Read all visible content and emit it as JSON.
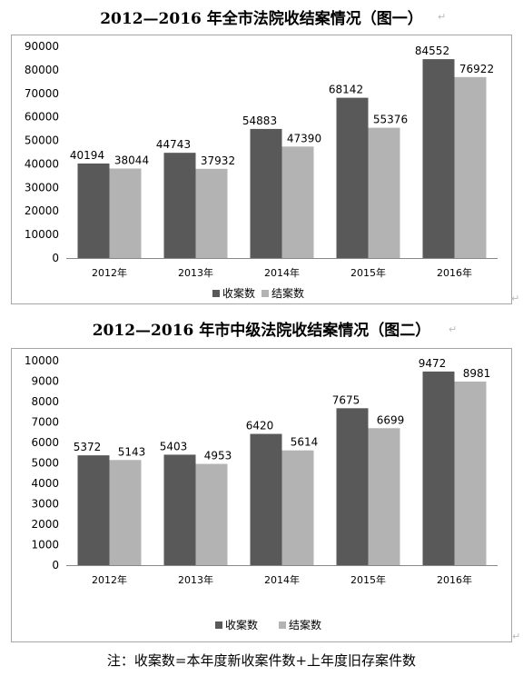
{
  "page": {
    "title1": "2012—2016 年全市法院收结案情况（图一）",
    "title2": "2012—2016 年市中级法院收结案情况（图二）",
    "note": "注：收案数=本年度新收案件数+上年度旧存案件数"
  },
  "colors": {
    "received": "#595959",
    "closed": "#b3b3b3",
    "axis": "#888888",
    "border": "#a6a6a6"
  },
  "chart_data": [
    {
      "type": "bar",
      "categories": [
        "2012年",
        "2013年",
        "2014年",
        "2015年",
        "2016年"
      ],
      "series": [
        {
          "name": "收案数",
          "values": [
            40194,
            44743,
            54883,
            68142,
            84552
          ]
        },
        {
          "name": "结案数",
          "values": [
            38044,
            37932,
            47390,
            55376,
            76922
          ]
        }
      ],
      "ylim": [
        0,
        90000
      ],
      "yticks": [
        0,
        10000,
        20000,
        30000,
        40000,
        50000,
        60000,
        70000,
        80000,
        90000
      ],
      "grid": false,
      "legend": "bottom-center"
    },
    {
      "type": "bar",
      "categories": [
        "2012年",
        "2013年",
        "2014年",
        "2015年",
        "2016年"
      ],
      "series": [
        {
          "name": "收案数",
          "values": [
            5372,
            5403,
            6420,
            7675,
            9472
          ]
        },
        {
          "name": "结案数",
          "values": [
            5143,
            4953,
            5614,
            6699,
            8981
          ]
        }
      ],
      "ylim": [
        0,
        10000
      ],
      "yticks": [
        0,
        1000,
        2000,
        3000,
        4000,
        5000,
        6000,
        7000,
        8000,
        9000,
        10000
      ],
      "grid": false,
      "legend": "bottom-center"
    }
  ]
}
